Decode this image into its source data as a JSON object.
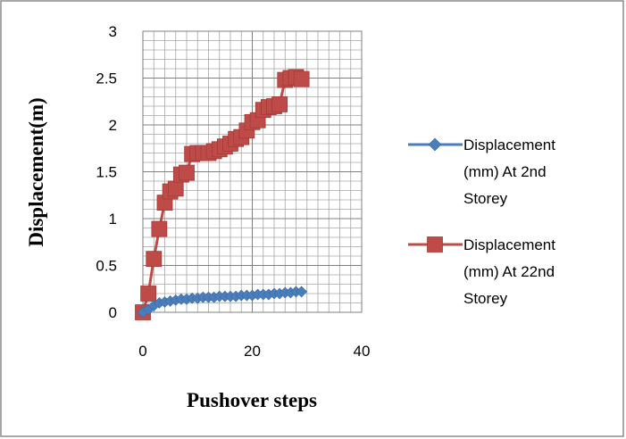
{
  "chart_data": {
    "type": "line",
    "title": "",
    "xlabel": "Pushover steps",
    "ylabel": "Displacement(m)",
    "xlim": [
      0,
      40
    ],
    "ylim": [
      0,
      3
    ],
    "x_ticks": [
      0,
      20,
      40
    ],
    "y_ticks": [
      0,
      0.5,
      1,
      1.5,
      2,
      2.5,
      3
    ],
    "y_tick_labels": [
      "0",
      "0.5",
      "1",
      "1.5",
      "2",
      "2.5",
      "3"
    ],
    "grid": true,
    "legend_position": "right",
    "series": [
      {
        "name": "Displacement (mm) At 2nd Storey",
        "legend_lines": [
          "Displacement",
          "(mm) At 2nd",
          "Storey"
        ],
        "color": "#4a7ebb",
        "marker": "diamond",
        "x": [
          0,
          1,
          2,
          3,
          4,
          5,
          6,
          7,
          8,
          9,
          10,
          11,
          12,
          13,
          14,
          15,
          16,
          17,
          18,
          19,
          20,
          21,
          22,
          23,
          24,
          25,
          26,
          27,
          28,
          29
        ],
        "y": [
          0,
          0.03,
          0.07,
          0.1,
          0.11,
          0.12,
          0.13,
          0.14,
          0.14,
          0.15,
          0.15,
          0.16,
          0.16,
          0.16,
          0.17,
          0.17,
          0.17,
          0.17,
          0.18,
          0.18,
          0.18,
          0.19,
          0.19,
          0.19,
          0.2,
          0.2,
          0.21,
          0.21,
          0.22,
          0.22
        ]
      },
      {
        "name": "Displacement (mm) At 22nd Storey",
        "legend_lines": [
          "Displacement",
          "(mm) At 22nd",
          "Storey"
        ],
        "color": "#be4b48",
        "marker": "square",
        "x": [
          0,
          1,
          2,
          3,
          4,
          5,
          6,
          7,
          8,
          9,
          10,
          11,
          12,
          13,
          14,
          15,
          16,
          17,
          18,
          19,
          20,
          21,
          22,
          23,
          24,
          25,
          26,
          27,
          28,
          29
        ],
        "y": [
          0,
          0.2,
          0.57,
          0.89,
          1.17,
          1.29,
          1.32,
          1.47,
          1.49,
          1.69,
          1.7,
          1.7,
          1.7,
          1.72,
          1.74,
          1.77,
          1.8,
          1.85,
          1.87,
          1.94,
          2.03,
          2.05,
          2.16,
          2.19,
          2.2,
          2.22,
          2.48,
          2.5,
          2.51,
          2.49
        ]
      }
    ]
  }
}
